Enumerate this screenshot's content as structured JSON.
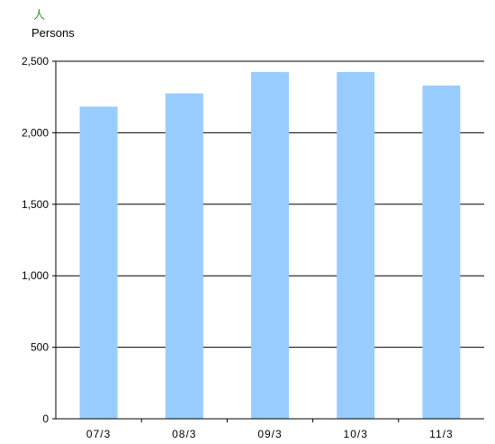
{
  "chart_data": {
    "type": "bar",
    "unit_label_jp": "人",
    "unit_label_en": "Persons",
    "categories": [
      "07/3",
      "08/3",
      "09/3",
      "10/3",
      "11/3"
    ],
    "values": [
      2183,
      2275,
      2425,
      2425,
      2330
    ],
    "ylim": [
      0,
      2500
    ],
    "yticks": [
      0,
      500,
      1000,
      1500,
      2000,
      2500
    ],
    "ytick_labels": [
      "0",
      "500",
      "1,000",
      "1,500",
      "2,000",
      "2,500"
    ],
    "grid": true,
    "bar_color": "#99ccff",
    "unit_jp_color": "#339933",
    "title": "",
    "xlabel": "",
    "ylabel": ""
  }
}
